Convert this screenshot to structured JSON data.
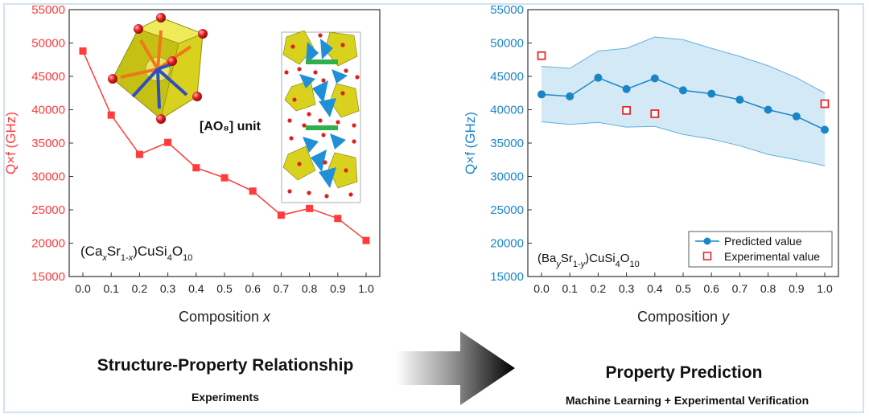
{
  "left_panel": {
    "footer_title": "Structure-Property Relationship",
    "footer_subtitle": "Experiments",
    "unit_label": "[AO₈] unit"
  },
  "right_panel": {
    "footer_title": "Property Prediction",
    "footer_subtitle": "Machine Learning + Experimental Verification"
  },
  "colors": {
    "left_series": "#ff3b3b",
    "right_series": "#1a85c7",
    "band_fill": "#d4e9f6",
    "band_edge": "#5fb0dc",
    "experimental_marker": "#e8262a",
    "polyhedron_yellow": "#d8d21e",
    "polyhedron_blue": "#1f8fd8",
    "oxygen_red": "#d81c1c"
  },
  "chart_data": [
    {
      "type": "line",
      "ylabel": "Q×f (GHz)",
      "xlabel": "Composition x",
      "annotation": "(CaxSr1-x)CuSi4O10",
      "x": [
        0.0,
        0.1,
        0.2,
        0.3,
        0.4,
        0.5,
        0.6,
        0.7,
        0.8,
        0.9,
        1.0
      ],
      "series": [
        {
          "values": [
            48800,
            39200,
            33300,
            35100,
            31300,
            29800,
            27800,
            24200,
            25200,
            23700,
            20400
          ]
        }
      ],
      "ylim": [
        15000,
        55000
      ],
      "yticks": [
        15000,
        20000,
        25000,
        30000,
        35000,
        40000,
        45000,
        50000,
        55000
      ],
      "xticks": [
        "0.0",
        "0.1",
        "0.2",
        "0.3",
        "0.4",
        "0.5",
        "0.6",
        "0.7",
        "0.8",
        "0.9",
        "1.0"
      ]
    },
    {
      "type": "line",
      "ylabel": "Q×f (GHz)",
      "xlabel": "Composition y",
      "annotation": "(BaySr1-y)CuSi4O10",
      "x": [
        0.0,
        0.1,
        0.2,
        0.3,
        0.4,
        0.5,
        0.6,
        0.7,
        0.8,
        0.9,
        1.0
      ],
      "series": [
        {
          "name": "Predicted value",
          "values": [
            42300,
            42000,
            44800,
            43100,
            44700,
            42900,
            42400,
            41500,
            40000,
            39000,
            37000
          ]
        },
        {
          "name": "Experimental value",
          "x": [
            0.0,
            0.3,
            0.4,
            1.0
          ],
          "values": [
            48100,
            39900,
            39400,
            40900
          ]
        }
      ],
      "band": {
        "upper": [
          46500,
          46200,
          48800,
          49200,
          50900,
          50500,
          49200,
          48000,
          46600,
          44800,
          42500
        ],
        "lower": [
          38200,
          37800,
          38100,
          37400,
          37500,
          36300,
          35600,
          34600,
          33300,
          32500,
          31600
        ]
      },
      "legend": "bottom-right",
      "ylim": [
        15000,
        55000
      ],
      "yticks": [
        15000,
        20000,
        25000,
        30000,
        35000,
        40000,
        45000,
        50000,
        55000
      ],
      "xticks": [
        "0.0",
        "0.1",
        "0.2",
        "0.3",
        "0.4",
        "0.5",
        "0.6",
        "0.7",
        "0.8",
        "0.9",
        "1.0"
      ]
    }
  ]
}
